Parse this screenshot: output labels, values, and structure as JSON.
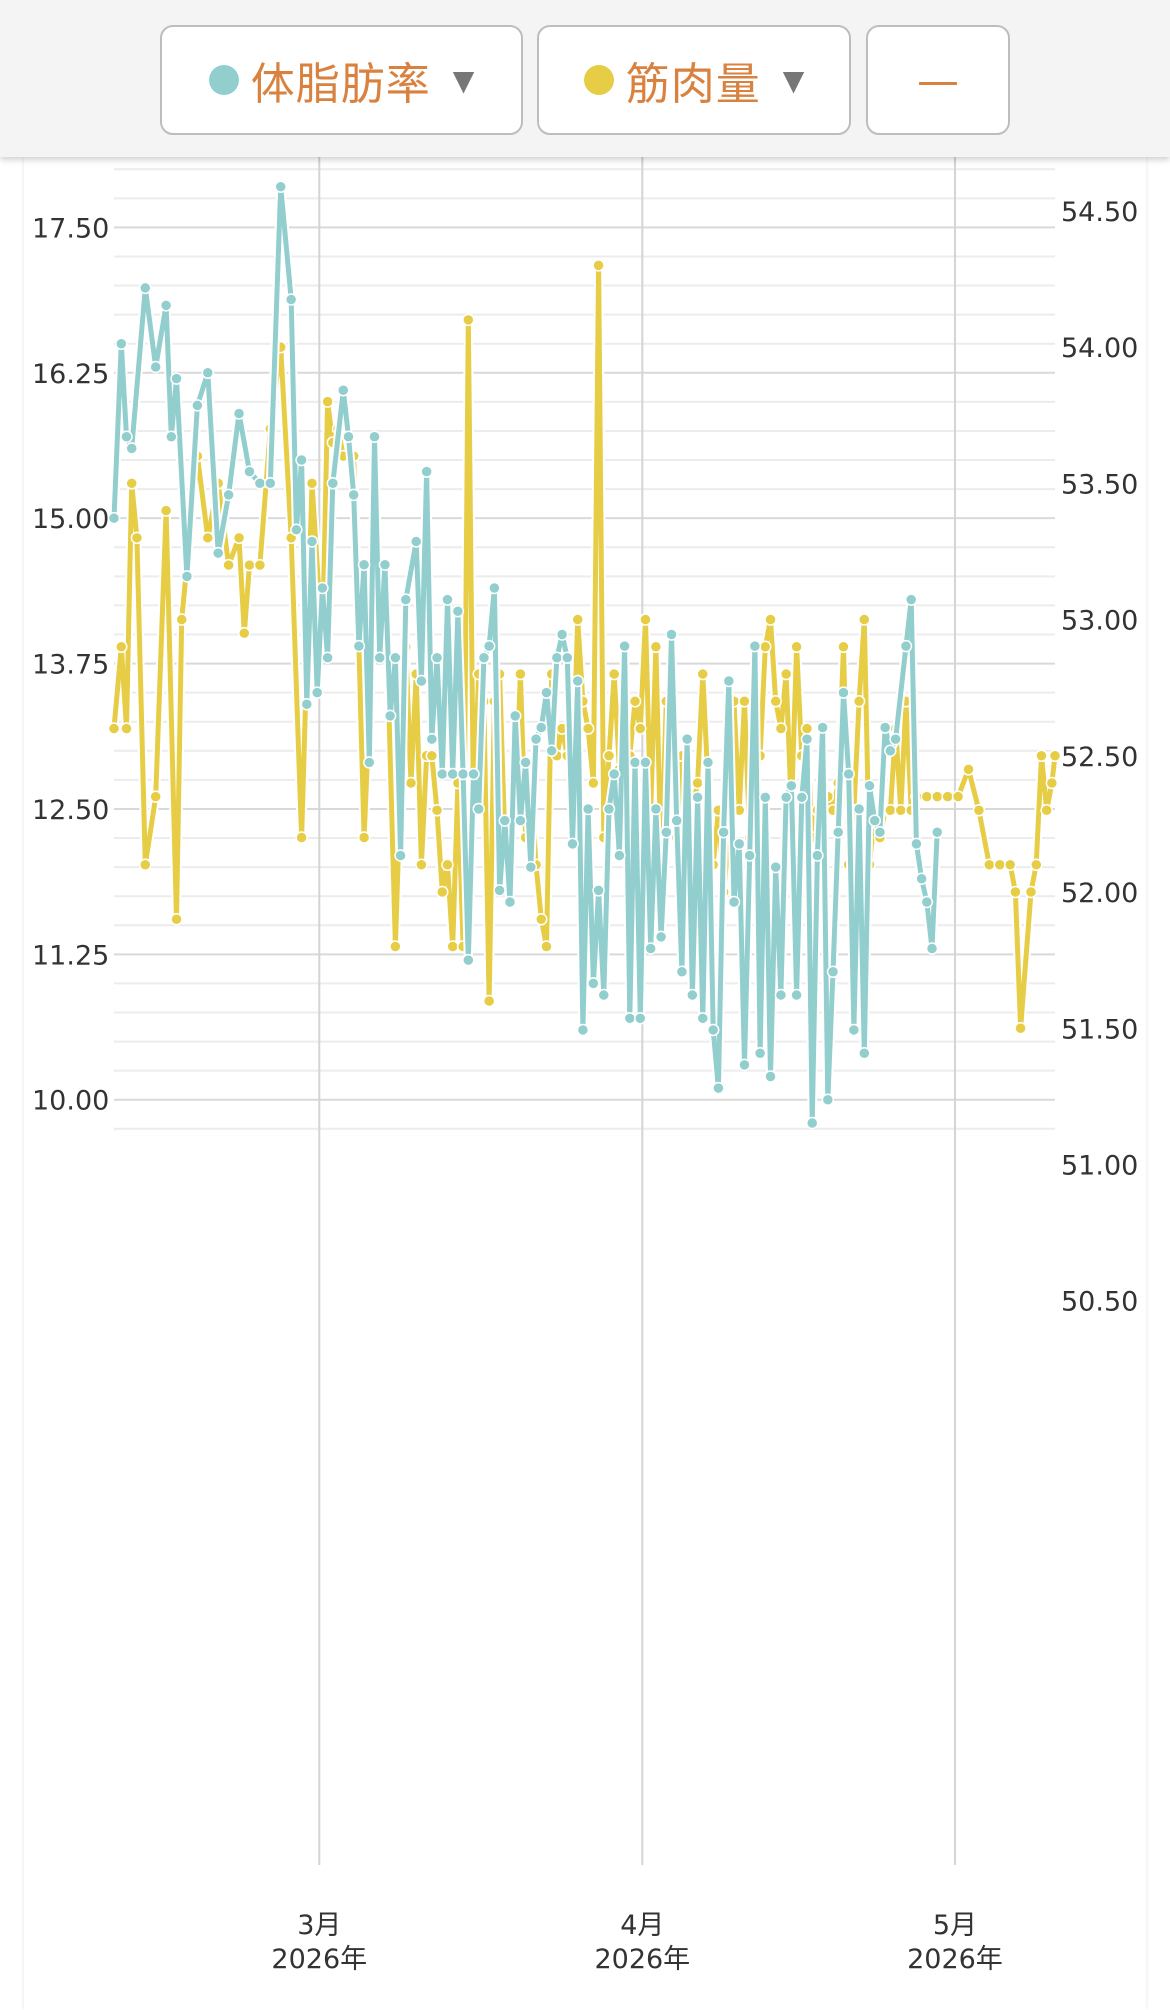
{
  "toolbar": {
    "series1": {
      "label": "体脂肪率",
      "dot_color": "#92cece",
      "caret": "▼"
    },
    "series2": {
      "label": "筋肉量",
      "dot_color": "#e6cd45",
      "caret": "▼"
    },
    "range_button": {
      "label": "—"
    }
  },
  "chart_data": {
    "type": "line",
    "x_unit": "days since Feb 1, 2026",
    "x_range": [
      8.3,
      98.6
    ],
    "x_ticks": [
      {
        "x": 28,
        "label": "3月",
        "label2": "2026年"
      },
      {
        "x": 59,
        "label": "4月",
        "label2": "2026年"
      },
      {
        "x": 89,
        "label": "5月",
        "label2": "2026年"
      }
    ],
    "y_left": {
      "range": [
        9.5,
        18.3
      ],
      "ticks": [
        "17.50",
        "16.25",
        "15.00",
        "13.75",
        "12.50",
        "11.25",
        "10.00"
      ]
    },
    "y_right": {
      "range": [
        50.13,
        55.05
      ],
      "ticks": [
        "54.50",
        "54.00",
        "53.50",
        "53.00",
        "52.50",
        "52.00",
        "51.50",
        "51.00",
        "50.50"
      ]
    },
    "series": [
      {
        "name": "筋肉量",
        "axis": "right",
        "color": "#e6cd45",
        "points": [
          [
            8.3,
            52.6
          ],
          [
            9,
            52.9
          ],
          [
            9.5,
            52.6
          ],
          [
            10,
            53.5
          ],
          [
            10.5,
            53.3
          ],
          [
            11.3,
            52.1
          ],
          [
            12.3,
            52.35
          ],
          [
            13.3,
            53.4
          ],
          [
            14.3,
            51.9
          ],
          [
            14.8,
            53
          ],
          [
            15.3,
            53.2
          ],
          [
            16.3,
            53.6
          ],
          [
            17.3,
            53.3
          ],
          [
            18.3,
            53.5
          ],
          [
            19.3,
            53.2
          ],
          [
            20.3,
            53.3
          ],
          [
            20.8,
            52.95
          ],
          [
            21.3,
            53.2
          ],
          [
            22.3,
            53.2
          ],
          [
            23.3,
            53.7
          ],
          [
            24.3,
            54
          ],
          [
            25.3,
            53.3
          ],
          [
            26.3,
            52.2
          ],
          [
            27.3,
            53.5
          ],
          [
            28.3,
            52.9
          ],
          [
            28.8,
            53.8
          ],
          [
            29.3,
            53.65
          ],
          [
            29.8,
            53.7
          ],
          [
            30.3,
            53.6
          ],
          [
            31.3,
            53.6
          ],
          [
            32.3,
            52.2
          ],
          [
            33.3,
            53.1
          ],
          [
            33.8,
            52.9
          ],
          [
            34.3,
            53.2
          ],
          [
            35.3,
            51.8
          ],
          [
            35.8,
            52.4
          ],
          [
            36.3,
            52.9
          ],
          [
            36.8,
            52.4
          ],
          [
            37.3,
            52.8
          ],
          [
            37.8,
            52.1
          ],
          [
            38.3,
            52.5
          ],
          [
            38.8,
            52.5
          ],
          [
            39.3,
            52.3
          ],
          [
            39.8,
            52.0
          ],
          [
            40.3,
            52.1
          ],
          [
            40.8,
            51.8
          ],
          [
            41.3,
            52.4
          ],
          [
            41.8,
            51.8
          ],
          [
            42.3,
            54.1
          ],
          [
            42.8,
            52.3
          ],
          [
            43.3,
            52.8
          ],
          [
            43.8,
            52.7
          ],
          [
            44.3,
            51.6
          ],
          [
            44.8,
            52.7
          ],
          [
            45.3,
            52.8
          ],
          [
            45.8,
            52.2
          ],
          [
            46.3,
            52.2
          ],
          [
            46.8,
            52.3
          ],
          [
            47.3,
            52.8
          ],
          [
            47.8,
            52.2
          ],
          [
            48.3,
            52.4
          ],
          [
            48.8,
            52.1
          ],
          [
            49.3,
            51.9
          ],
          [
            49.8,
            51.8
          ],
          [
            50.3,
            52.8
          ],
          [
            50.8,
            52.5
          ],
          [
            51.3,
            52.6
          ],
          [
            51.8,
            52.5
          ],
          [
            52.3,
            52.4
          ],
          [
            52.8,
            53.0
          ],
          [
            53.3,
            52.7
          ],
          [
            53.8,
            52.6
          ],
          [
            54.3,
            52.4
          ],
          [
            54.8,
            54.3
          ],
          [
            55.3,
            52.2
          ],
          [
            55.8,
            52.5
          ],
          [
            56.3,
            52.8
          ],
          [
            56.8,
            52.45
          ],
          [
            57.3,
            52.3
          ],
          [
            57.8,
            52.5
          ],
          [
            58.3,
            52.7
          ],
          [
            58.8,
            52.6
          ],
          [
            59.3,
            53.0
          ],
          [
            59.8,
            52.3
          ],
          [
            60.3,
            52.9
          ],
          [
            60.8,
            52.1
          ],
          [
            61.3,
            52.7
          ],
          [
            61.8,
            52.6
          ],
          [
            62.3,
            52.2
          ],
          [
            62.8,
            52.5
          ],
          [
            63.3,
            52.3
          ],
          [
            63.8,
            52.3
          ],
          [
            64.3,
            52.4
          ],
          [
            64.8,
            52.8
          ],
          [
            65.3,
            52.4
          ],
          [
            65.8,
            52.1
          ],
          [
            66.3,
            52.3
          ],
          [
            66.8,
            52.0
          ],
          [
            67.3,
            52.2
          ],
          [
            67.8,
            52.7
          ],
          [
            68.3,
            52.3
          ],
          [
            68.8,
            52.7
          ],
          [
            69.3,
            52.2
          ],
          [
            69.8,
            52.4
          ],
          [
            70.3,
            52.5
          ],
          [
            70.8,
            52.9
          ],
          [
            71.3,
            53.0
          ],
          [
            71.8,
            52.7
          ],
          [
            72.3,
            52.6
          ],
          [
            72.8,
            52.8
          ],
          [
            73.3,
            52.3
          ],
          [
            73.8,
            52.9
          ],
          [
            74.3,
            52.5
          ],
          [
            74.8,
            52.6
          ],
          [
            75.3,
            52.2
          ],
          [
            75.8,
            52.3
          ],
          [
            76.3,
            52.3
          ],
          [
            76.8,
            52.35
          ],
          [
            77.3,
            52.3
          ],
          [
            77.8,
            52.4
          ],
          [
            78.3,
            52.9
          ],
          [
            78.8,
            52.1
          ],
          [
            79.3,
            52.3
          ],
          [
            79.8,
            52.7
          ],
          [
            80.3,
            53.0
          ],
          [
            80.8,
            52.1
          ],
          [
            81.3,
            52.3
          ],
          [
            81.8,
            52.2
          ],
          [
            82.3,
            52.3
          ],
          [
            82.8,
            52.3
          ],
          [
            83.3,
            52.6
          ],
          [
            83.8,
            52.3
          ],
          [
            84.3,
            52.7
          ],
          [
            84.8,
            52.3
          ],
          [
            85.3,
            52.35
          ],
          [
            86.3,
            52.35
          ],
          [
            87.3,
            52.35
          ],
          [
            88.3,
            52.35
          ],
          [
            89.3,
            52.35
          ],
          [
            90.3,
            52.45
          ],
          [
            91.3,
            52.3
          ],
          [
            92.3,
            52.1
          ],
          [
            93.3,
            52.1
          ],
          [
            94.3,
            52.1
          ],
          [
            94.8,
            52.0
          ],
          [
            95.3,
            51.5
          ],
          [
            96.3,
            52.0
          ],
          [
            96.8,
            52.1
          ],
          [
            97.3,
            52.5
          ],
          [
            97.8,
            52.3
          ],
          [
            98.3,
            52.4
          ],
          [
            98.6,
            52.5
          ]
        ]
      },
      {
        "name": "体脂肪率",
        "axis": "left",
        "color": "#92cece",
        "points": [
          [
            8.3,
            15.0
          ],
          [
            9,
            16.5
          ],
          [
            9.5,
            15.7
          ],
          [
            10,
            15.6
          ],
          [
            11.3,
            16.98
          ],
          [
            12.3,
            16.3
          ],
          [
            13.3,
            16.83
          ],
          [
            13.8,
            15.7
          ],
          [
            14.3,
            16.2
          ],
          [
            15.3,
            14.5
          ],
          [
            16.3,
            15.97
          ],
          [
            17.3,
            16.25
          ],
          [
            18.3,
            14.7
          ],
          [
            19.3,
            15.2
          ],
          [
            20.3,
            15.9
          ],
          [
            21.3,
            15.4
          ],
          [
            22.3,
            15.3
          ],
          [
            23.3,
            15.3
          ],
          [
            24.3,
            17.85
          ],
          [
            25.3,
            16.88
          ],
          [
            25.8,
            14.9
          ],
          [
            26.3,
            15.5
          ],
          [
            26.8,
            13.4
          ],
          [
            27.3,
            14.8
          ],
          [
            27.8,
            13.5
          ],
          [
            28.3,
            14.4
          ],
          [
            28.8,
            13.8
          ],
          [
            29.3,
            15.3
          ],
          [
            30.3,
            16.1
          ],
          [
            30.8,
            15.7
          ],
          [
            31.3,
            15.2
          ],
          [
            31.8,
            13.9
          ],
          [
            32.3,
            14.6
          ],
          [
            32.8,
            12.9
          ],
          [
            33.3,
            15.7
          ],
          [
            33.8,
            13.8
          ],
          [
            34.3,
            14.6
          ],
          [
            34.8,
            13.3
          ],
          [
            35.3,
            13.8
          ],
          [
            35.8,
            12.1
          ],
          [
            36.3,
            14.3
          ],
          [
            37.3,
            14.8
          ],
          [
            37.8,
            13.6
          ],
          [
            38.3,
            15.4
          ],
          [
            38.8,
            13.1
          ],
          [
            39.3,
            13.8
          ],
          [
            39.8,
            12.8
          ],
          [
            40.3,
            14.3
          ],
          [
            40.8,
            12.8
          ],
          [
            41.3,
            14.2
          ],
          [
            41.8,
            12.8
          ],
          [
            42.3,
            11.2
          ],
          [
            42.8,
            12.8
          ],
          [
            43.3,
            12.5
          ],
          [
            43.8,
            13.8
          ],
          [
            44.3,
            13.9
          ],
          [
            44.8,
            14.4
          ],
          [
            45.3,
            11.8
          ],
          [
            45.8,
            12.4
          ],
          [
            46.3,
            11.7
          ],
          [
            46.8,
            13.3
          ],
          [
            47.3,
            12.4
          ],
          [
            47.8,
            12.9
          ],
          [
            48.3,
            12.0
          ],
          [
            48.8,
            13.1
          ],
          [
            49.3,
            13.2
          ],
          [
            49.8,
            13.5
          ],
          [
            50.3,
            13.0
          ],
          [
            50.8,
            13.8
          ],
          [
            51.3,
            14.0
          ],
          [
            51.8,
            13.8
          ],
          [
            52.3,
            12.2
          ],
          [
            52.8,
            13.6
          ],
          [
            53.3,
            10.6
          ],
          [
            53.8,
            12.5
          ],
          [
            54.3,
            11.0
          ],
          [
            54.8,
            11.8
          ],
          [
            55.3,
            10.9
          ],
          [
            55.8,
            12.5
          ],
          [
            56.3,
            12.8
          ],
          [
            56.8,
            12.1
          ],
          [
            57.3,
            13.9
          ],
          [
            57.8,
            10.7
          ],
          [
            58.3,
            12.9
          ],
          [
            58.8,
            10.7
          ],
          [
            59.3,
            12.9
          ],
          [
            59.8,
            11.3
          ],
          [
            60.3,
            12.5
          ],
          [
            60.8,
            11.4
          ],
          [
            61.3,
            12.3
          ],
          [
            61.8,
            14.0
          ],
          [
            62.3,
            12.4
          ],
          [
            62.8,
            11.1
          ],
          [
            63.3,
            13.1
          ],
          [
            63.8,
            10.9
          ],
          [
            64.3,
            12.6
          ],
          [
            64.8,
            10.7
          ],
          [
            65.3,
            12.9
          ],
          [
            65.8,
            10.6
          ],
          [
            66.3,
            10.1
          ],
          [
            66.8,
            12.3
          ],
          [
            67.3,
            13.6
          ],
          [
            67.8,
            11.7
          ],
          [
            68.3,
            12.2
          ],
          [
            68.8,
            10.3
          ],
          [
            69.3,
            12.1
          ],
          [
            69.8,
            13.9
          ],
          [
            70.3,
            10.4
          ],
          [
            70.8,
            12.6
          ],
          [
            71.3,
            10.2
          ],
          [
            71.8,
            12.0
          ],
          [
            72.3,
            10.9
          ],
          [
            72.8,
            12.6
          ],
          [
            73.3,
            12.7
          ],
          [
            73.8,
            10.9
          ],
          [
            74.3,
            12.6
          ],
          [
            74.8,
            13.1
          ],
          [
            75.3,
            9.8
          ],
          [
            75.8,
            12.1
          ],
          [
            76.3,
            13.2
          ],
          [
            76.8,
            10.0
          ],
          [
            77.3,
            11.1
          ],
          [
            77.8,
            12.3
          ],
          [
            78.3,
            13.5
          ],
          [
            78.8,
            12.8
          ],
          [
            79.3,
            10.6
          ],
          [
            79.8,
            12.5
          ],
          [
            80.3,
            10.4
          ],
          [
            80.8,
            12.7
          ],
          [
            81.3,
            12.4
          ],
          [
            81.8,
            12.3
          ],
          [
            82.3,
            13.2
          ],
          [
            82.8,
            13.0
          ],
          [
            83.3,
            13.1
          ],
          [
            84.3,
            13.9
          ],
          [
            84.8,
            14.3
          ],
          [
            85.3,
            12.2
          ],
          [
            85.8,
            11.9
          ],
          [
            86.3,
            11.7
          ],
          [
            86.8,
            11.3
          ],
          [
            87.3,
            12.3
          ]
        ]
      }
    ]
  }
}
